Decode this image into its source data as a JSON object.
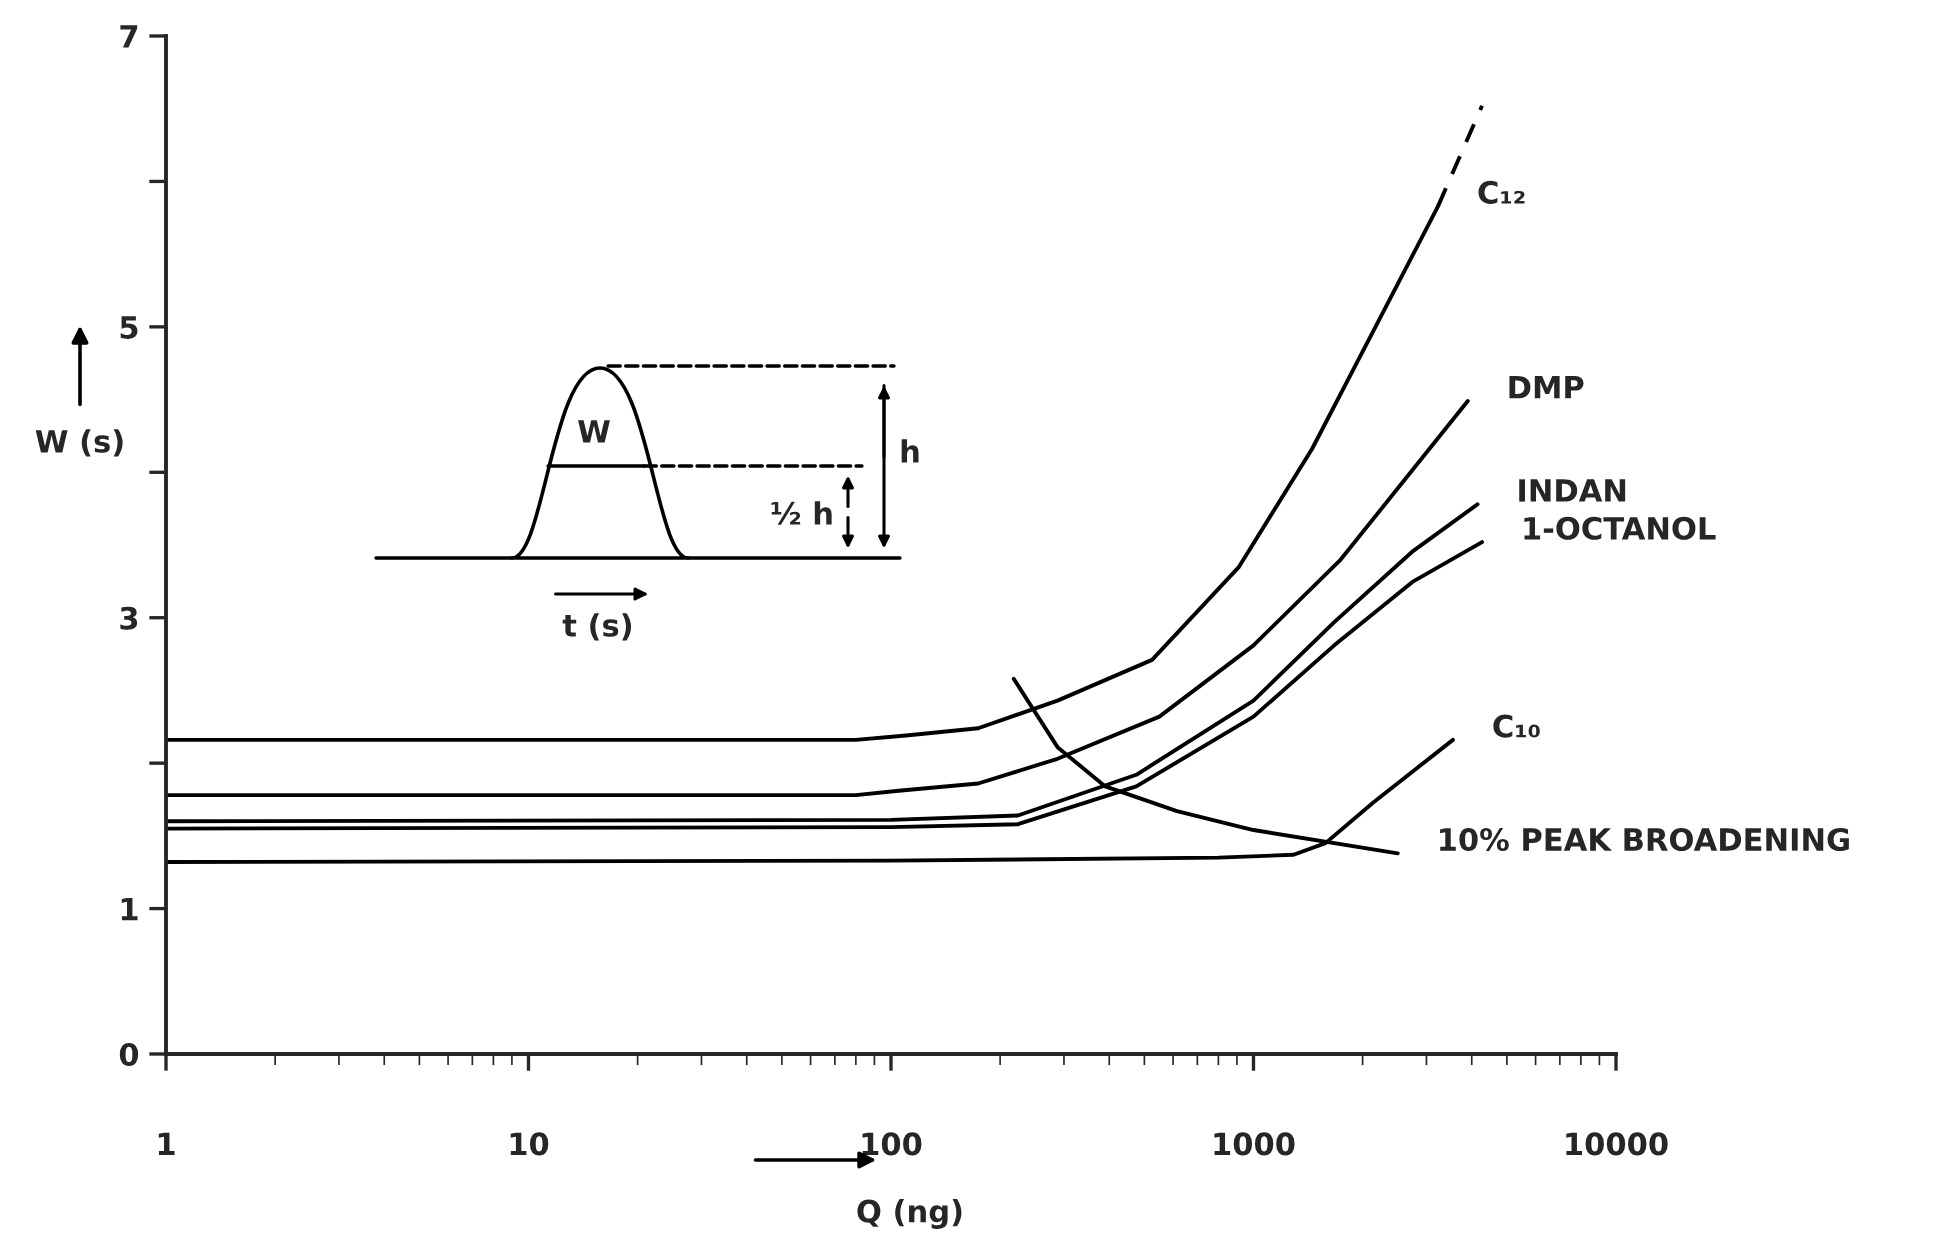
{
  "chart_data": {
    "type": "line",
    "xlabel": "Q (ng)",
    "ylabel": "W (s)",
    "log": "x",
    "xlim": [
      1,
      10000
    ],
    "xticks": [
      1,
      10,
      100,
      1000,
      10000
    ],
    "ylim": [
      0,
      7
    ],
    "yticks": [
      0,
      1,
      {
        "value": 2,
        "label": null
      },
      3,
      {
        "value": 4,
        "label": null
      },
      5,
      {
        "value": 6,
        "label": null
      },
      7
    ],
    "grid": false,
    "legend": false,
    "line_style": "solid",
    "series": [
      {
        "name": "C₁₂",
        "color": "#000000",
        "x": [
          1,
          80,
          110,
          174,
          288,
          525,
          912,
          1450,
          2140,
          3230
        ],
        "values": [
          2.16,
          2.16,
          2.19,
          2.24,
          2.43,
          2.71,
          3.35,
          4.16,
          4.97,
          5.83
        ]
      },
      {
        "color": "#000000",
        "line_style": "dashed",
        "x": [
          3230,
          4270
        ],
        "values": [
          5.83,
          6.52
        ]
      },
      {
        "name": "DMP",
        "color": "#000000",
        "x": [
          1,
          80,
          105,
          174,
          288,
          550,
          1000,
          1740,
          3900
        ],
        "values": [
          1.78,
          1.78,
          1.81,
          1.86,
          2.03,
          2.32,
          2.81,
          3.4,
          4.49
        ]
      },
      {
        "name": "INDAN",
        "color": "#000000",
        "x": [
          1,
          100,
          224,
          475,
          1000,
          1670,
          2760,
          4150
        ],
        "values": [
          1.6,
          1.61,
          1.64,
          1.92,
          2.43,
          2.97,
          3.46,
          3.78
        ]
      },
      {
        "name": "1-OCTANOL",
        "color": "#000000",
        "x": [
          1,
          100,
          224,
          475,
          1000,
          1670,
          2760,
          4270
        ],
        "values": [
          1.55,
          1.56,
          1.58,
          1.84,
          2.32,
          2.81,
          3.25,
          3.52
        ]
      },
      {
        "name": "C₁₀",
        "color": "#000000",
        "x": [
          1,
          100,
          800,
          1290,
          1580,
          2140,
          3550
        ],
        "values": [
          1.32,
          1.33,
          1.35,
          1.37,
          1.45,
          1.73,
          2.16
        ]
      },
      {
        "name": "10% PEAK BROADENING",
        "color": "#000000",
        "x": [
          218,
          288,
          390,
          615,
          1000,
          2500
        ],
        "values": [
          2.58,
          2.11,
          1.84,
          1.67,
          1.54,
          1.38
        ]
      }
    ],
    "annotations": [
      "W",
      "½ h",
      "h",
      "t (s)"
    ]
  }
}
